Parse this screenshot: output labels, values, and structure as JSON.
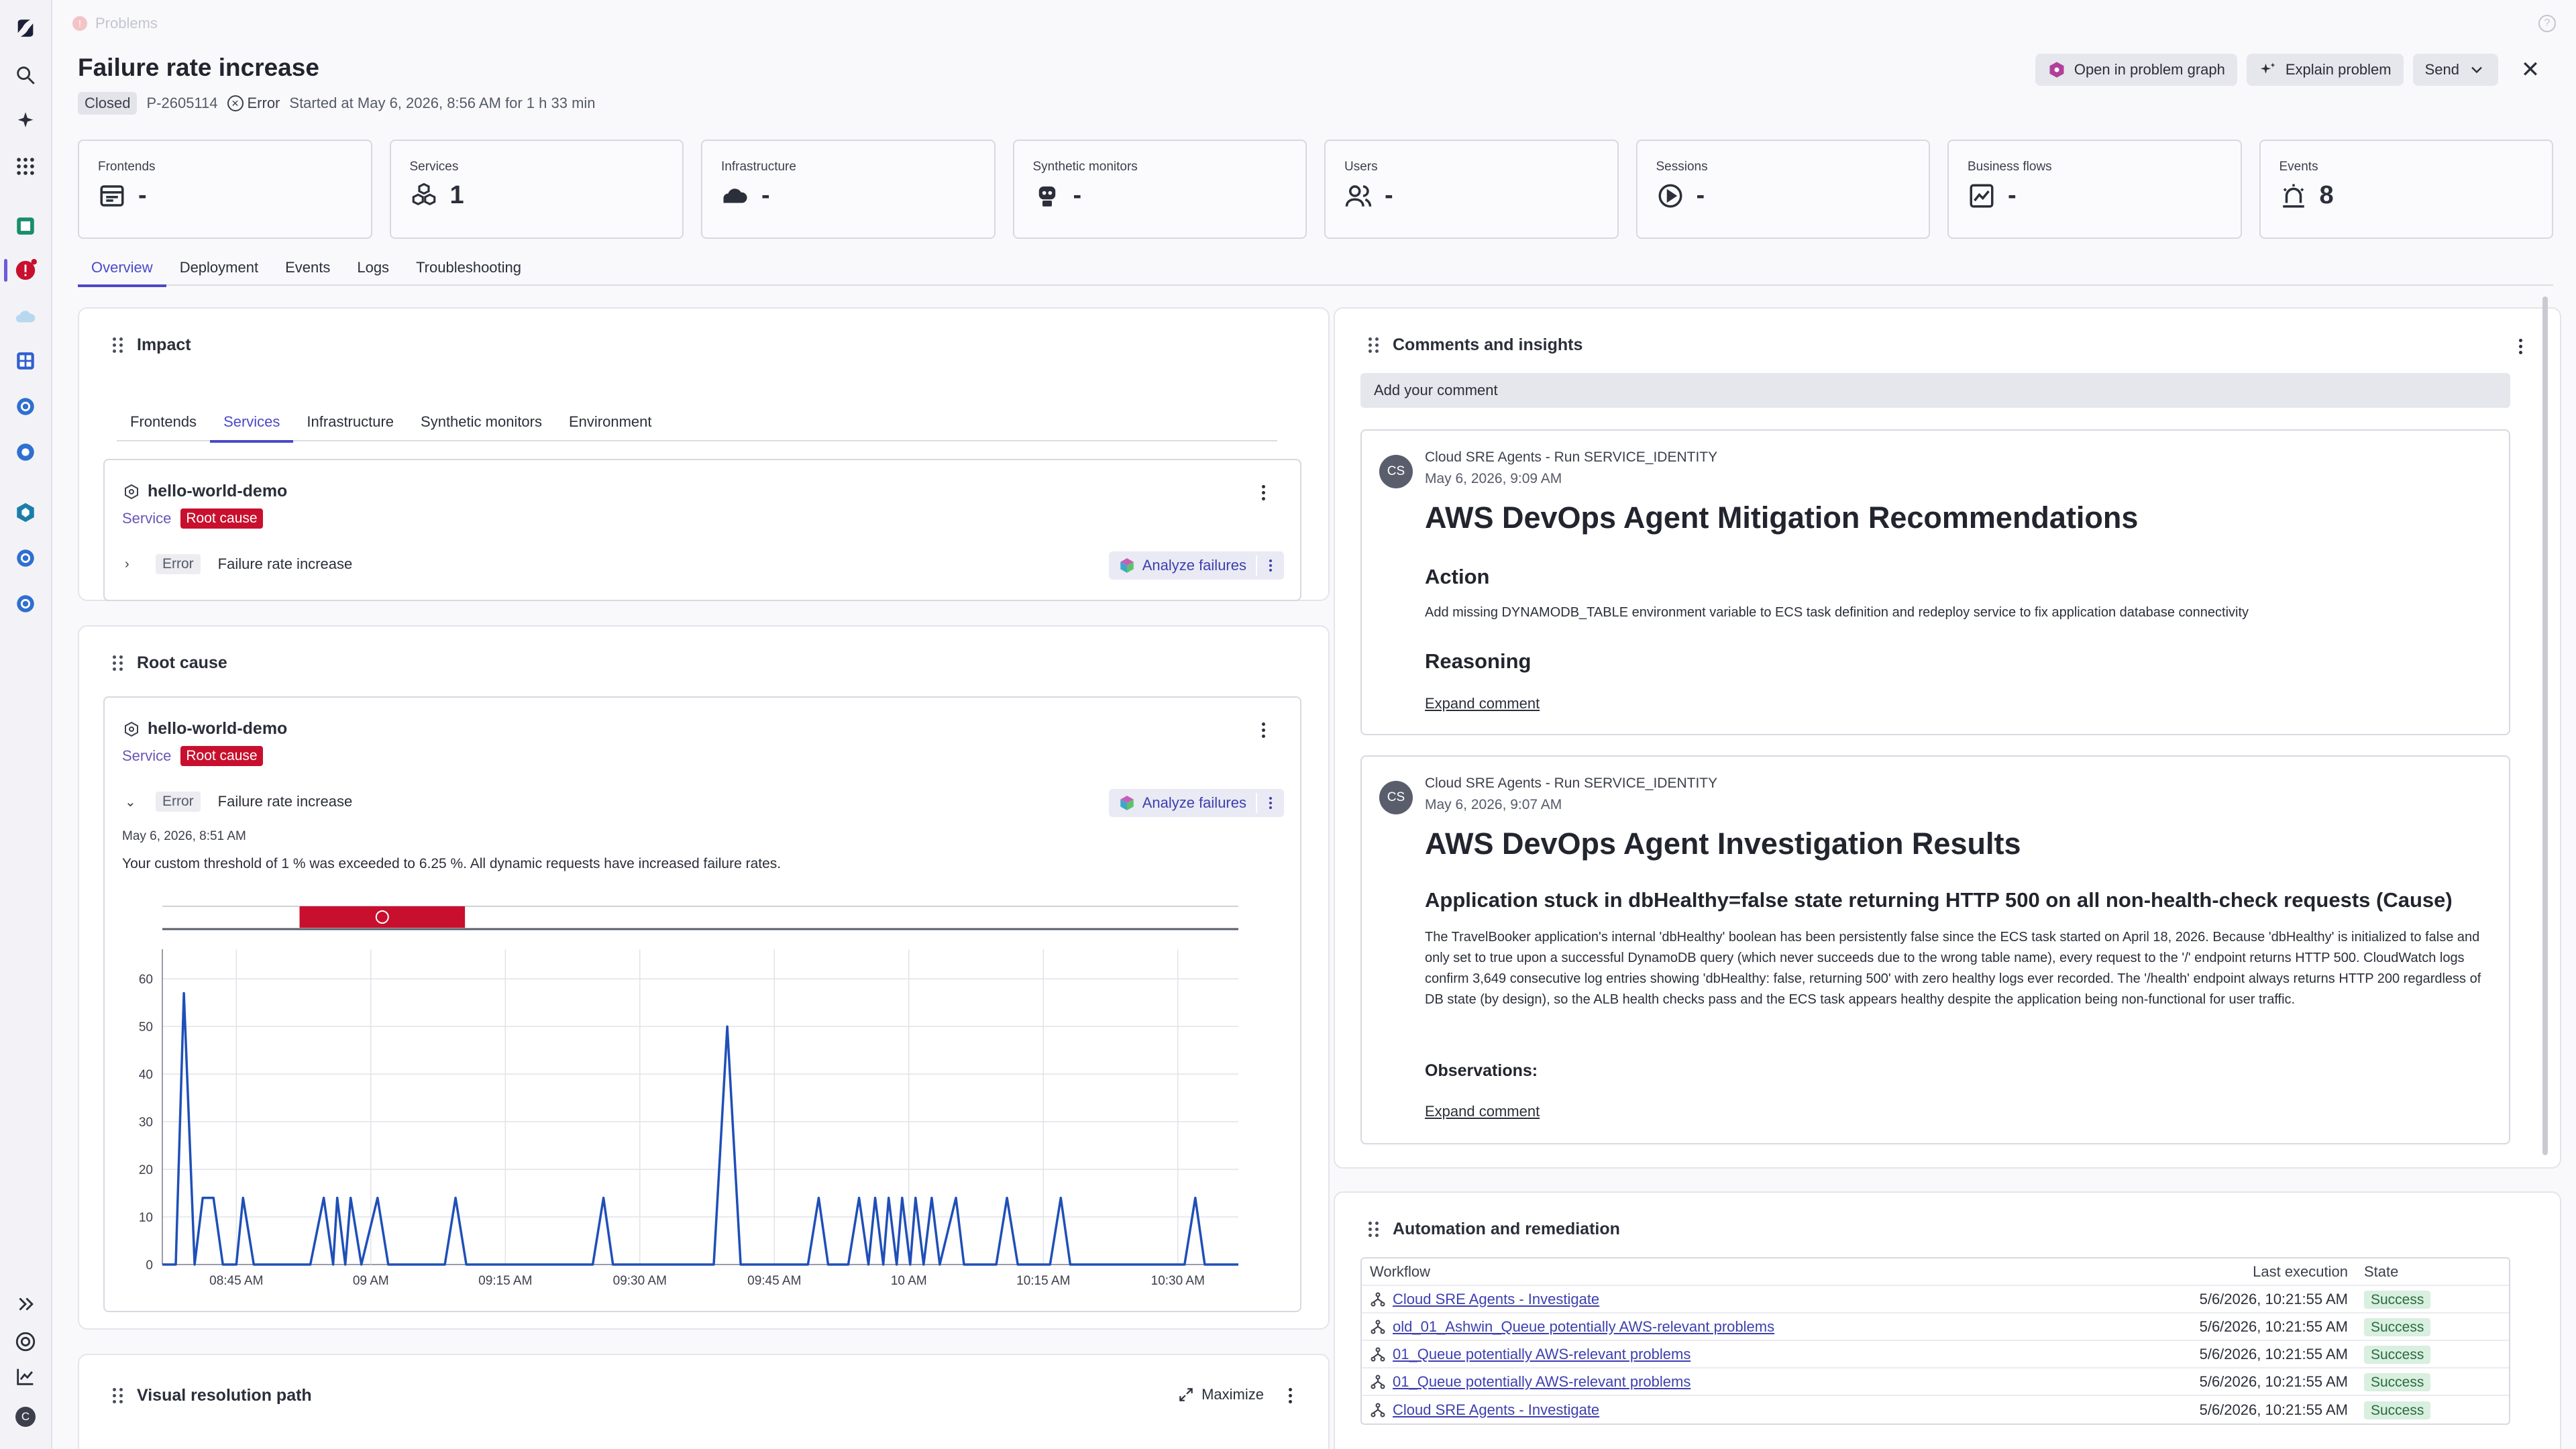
{
  "breadcrumb": "Problems",
  "problem": {
    "title": "Failure rate increase",
    "status": "Closed",
    "id": "P-2605114",
    "severity": "Error",
    "started": "Started at May 6, 2026, 8:56 AM for 1 h 33 min"
  },
  "actions": {
    "open_graph": "Open in problem graph",
    "explain": "Explain problem",
    "send": "Send"
  },
  "stats": [
    {
      "label": "Frontends",
      "value": "-",
      "icon": "frontend-icon"
    },
    {
      "label": "Services",
      "value": "1",
      "icon": "services-icon"
    },
    {
      "label": "Infrastructure",
      "value": "-",
      "icon": "infrastructure-icon"
    },
    {
      "label": "Synthetic monitors",
      "value": "-",
      "icon": "robot-icon"
    },
    {
      "label": "Users",
      "value": "-",
      "icon": "users-icon"
    },
    {
      "label": "Sessions",
      "value": "-",
      "icon": "sessions-icon"
    },
    {
      "label": "Business flows",
      "value": "-",
      "icon": "business-flow-icon"
    },
    {
      "label": "Events",
      "value": "8",
      "icon": "alarm-icon"
    }
  ],
  "tabs": [
    "Overview",
    "Deployment",
    "Events",
    "Logs",
    "Troubleshooting"
  ],
  "impact": {
    "title": "Impact",
    "tabs": [
      "Frontends",
      "Services",
      "Infrastructure",
      "Synthetic monitors",
      "Environment"
    ],
    "service": {
      "name": "hello-world-demo",
      "type": "Service",
      "badge": "Root cause",
      "err_tag": "Error",
      "err_title": "Failure rate increase",
      "analyze": "Analyze failures"
    }
  },
  "root_cause": {
    "title": "Root cause",
    "service": {
      "name": "hello-world-demo",
      "type": "Service",
      "badge": "Root cause",
      "err_tag": "Error",
      "err_title": "Failure rate increase",
      "analyze": "Analyze failures",
      "date": "May 6, 2026, 8:51 AM",
      "description": "Your custom threshold of 1 % was exceeded to 6.25 %. All dynamic requests have increased failure rates."
    }
  },
  "visual_path": {
    "title": "Visual resolution path",
    "maximize": "Maximize"
  },
  "chart_data": {
    "type": "line",
    "x_ticks": [
      "08:45 AM",
      "09 AM",
      "09:15 AM",
      "09:30 AM",
      "09:45 AM",
      "10 AM",
      "10:15 AM",
      "10:30 AM"
    ],
    "y_ticks": [
      "0",
      "10",
      "20",
      "30",
      "40",
      "50",
      "60"
    ],
    "ylim": [
      0,
      62
    ],
    "x_range": [
      0,
      80
    ],
    "x_tick_pos": [
      5.5,
      15.5,
      25.5,
      35.5,
      45.5,
      55.5,
      65.5,
      75.5
    ],
    "problem_window": [
      10.2,
      22.5
    ],
    "series": [
      {
        "color": "#1f4fb8",
        "points": [
          [
            0,
            0
          ],
          [
            1,
            0
          ],
          [
            1.6,
            57
          ],
          [
            2.4,
            0
          ],
          [
            3,
            14
          ],
          [
            3.8,
            14
          ],
          [
            4.5,
            0
          ],
          [
            5.5,
            0
          ],
          [
            6,
            14
          ],
          [
            6.8,
            0
          ],
          [
            11,
            0
          ],
          [
            12,
            14
          ],
          [
            12.7,
            0
          ],
          [
            13,
            14
          ],
          [
            13.6,
            0
          ],
          [
            14,
            14
          ],
          [
            14.8,
            0
          ],
          [
            16,
            14
          ],
          [
            16.8,
            0
          ],
          [
            21,
            0
          ],
          [
            21.8,
            14
          ],
          [
            22.6,
            0
          ],
          [
            32,
            0
          ],
          [
            32.8,
            14
          ],
          [
            33.5,
            0
          ],
          [
            41,
            0
          ],
          [
            42,
            50
          ],
          [
            43,
            0
          ],
          [
            48,
            0
          ],
          [
            48.8,
            14
          ],
          [
            49.5,
            0
          ],
          [
            51,
            0
          ],
          [
            51.8,
            14
          ],
          [
            52.5,
            0
          ],
          [
            53,
            14
          ],
          [
            53.6,
            0
          ],
          [
            54,
            14
          ],
          [
            54.6,
            0
          ],
          [
            55,
            14
          ],
          [
            55.6,
            0
          ],
          [
            56,
            14
          ],
          [
            56.6,
            0
          ],
          [
            57.2,
            14
          ],
          [
            57.8,
            0
          ],
          [
            59,
            14
          ],
          [
            59.6,
            0
          ],
          [
            62,
            0
          ],
          [
            62.8,
            14
          ],
          [
            63.6,
            0
          ],
          [
            66,
            0
          ],
          [
            66.8,
            14
          ],
          [
            67.5,
            0
          ],
          [
            76,
            0
          ],
          [
            76.8,
            14
          ],
          [
            77.5,
            0
          ],
          [
            80,
            0
          ]
        ]
      }
    ]
  },
  "comments": {
    "title": "Comments and insights",
    "add_placeholder": "Add your comment",
    "items": [
      {
        "initials": "CS",
        "author": "Cloud SRE Agents - Run SERVICE_IDENTITY",
        "date": "May 6, 2026, 9:09 AM",
        "heading": "AWS DevOps Agent Mitigation Recommendations",
        "sub1": "Action",
        "body1": "Add missing DYNAMODB_TABLE environment variable to ECS task definition and redeploy service to fix application database connectivity",
        "sub2": "Reasoning",
        "expand": "Expand comment"
      },
      {
        "initials": "CS",
        "author": "Cloud SRE Agents - Run SERVICE_IDENTITY",
        "date": "May 6, 2026, 9:07 AM",
        "heading": "AWS DevOps Agent Investigation Results",
        "sub1": "Application stuck in dbHealthy=false state returning HTTP 500 on all non-health-check requests (Cause)",
        "body1": "The TravelBooker application's internal 'dbHealthy' boolean has been persistently false since the ECS task started on April 18, 2026. Because 'dbHealthy' is initialized to false and only set to true upon a successful DynamoDB query (which never succeeds due to the wrong table name), every request to the '/' endpoint returns HTTP 500. CloudWatch logs confirm 3,649 consecutive log entries showing 'dbHealthy: false, returning 500' with zero healthy logs ever recorded. The '/health' endpoint always returns HTTP 200 regardless of DB state (by design), so the ALB health checks pass and the ECS task appears healthy despite the application being non-functional for user traffic.",
        "sub2": "Observations:",
        "expand": "Expand comment"
      }
    ]
  },
  "automation": {
    "title": "Automation and remediation",
    "columns": [
      "Workflow",
      "Last execution",
      "State"
    ],
    "rows": [
      {
        "workflow": "Cloud SRE Agents - Investigate",
        "last": "5/6/2026, 10:21:55 AM",
        "state": "Success"
      },
      {
        "workflow": "old_01_Ashwin_Queue potentially AWS-relevant problems",
        "last": "5/6/2026, 10:21:55 AM",
        "state": "Success"
      },
      {
        "workflow": "01_Queue potentially AWS-relevant problems",
        "last": "5/6/2026, 10:21:55 AM",
        "state": "Success"
      },
      {
        "workflow": "01_Queue potentially AWS-relevant problems",
        "last": "5/6/2026, 10:21:55 AM",
        "state": "Success"
      },
      {
        "workflow": "Cloud SRE Agents - Investigate",
        "last": "5/6/2026, 10:21:55 AM",
        "state": "Success"
      }
    ]
  },
  "rail": {
    "user_initial": "C"
  }
}
